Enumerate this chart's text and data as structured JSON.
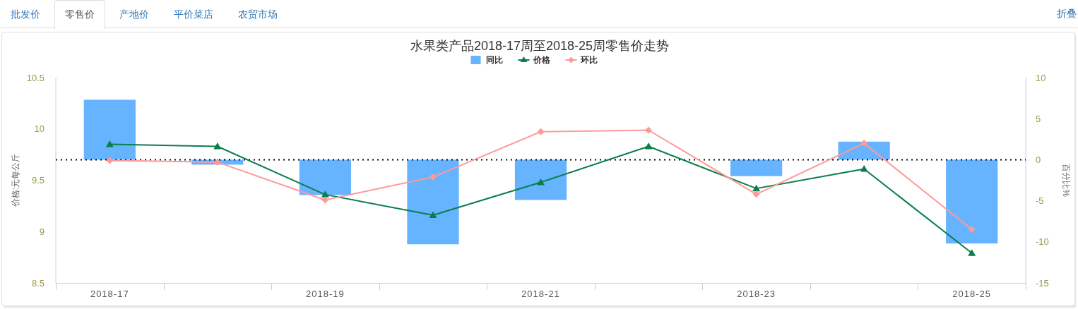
{
  "chart_data": {
    "type": "bar",
    "title": "水果类产品2018-17周至2018-25周零售价走势",
    "categories": [
      "2018-17",
      null,
      "2018-19",
      null,
      "2018-21",
      null,
      "2018-23",
      null,
      "2018-25"
    ],
    "ylabel": "价格:元每公斤",
    "y2label": "百分比%",
    "ylim": [
      8.5,
      10.5
    ],
    "yticks": [
      8.5,
      9,
      9.5,
      10,
      10.5
    ],
    "y2lim": [
      -15,
      10
    ],
    "y2ticks": [
      -15,
      -10,
      -5,
      0,
      5,
      10
    ],
    "series": [
      {
        "name": "同比",
        "axis": "y2",
        "color": "#66b3ff",
        "values": [
          7.3,
          -0.6,
          -4.3,
          -10.3,
          -4.9,
          null,
          -2.0,
          2.2,
          -10.2
        ]
      },
      {
        "name": "价格",
        "type": "line",
        "color": "#0b7f4a",
        "marker": "triangle",
        "values": [
          9.85,
          9.83,
          9.36,
          9.16,
          9.48,
          9.83,
          9.42,
          9.61,
          8.79
        ]
      },
      {
        "name": "环比",
        "type": "line",
        "axis": "y2",
        "color": "#ff9999",
        "marker": "diamond",
        "values": [
          -0.1,
          -0.3,
          -4.9,
          -2.1,
          3.4,
          3.6,
          -4.2,
          2.0,
          -8.5
        ]
      }
    ],
    "ref_lines": [
      {
        "axis": "y2",
        "value": 0,
        "color": "#000000",
        "line_style": "dotted"
      }
    ],
    "legend": "top",
    "annotations": [
      "批发价",
      "零售价",
      "产地价",
      "平价菜店",
      "农贸市场",
      "折叠"
    ]
  }
}
